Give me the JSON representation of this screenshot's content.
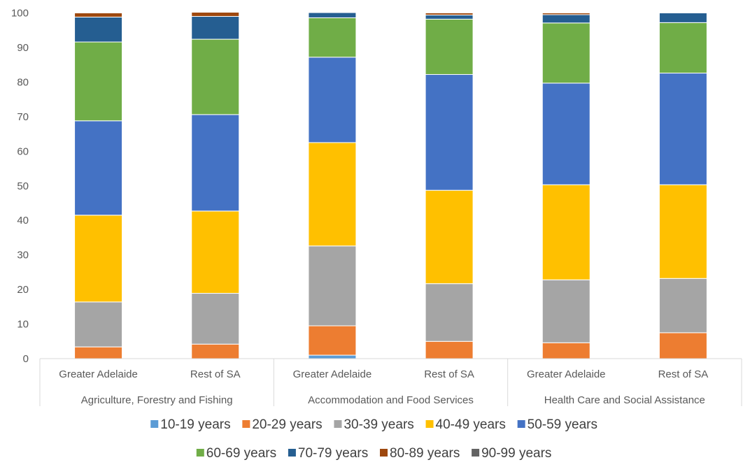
{
  "chart_data": {
    "type": "bar",
    "stacked": true,
    "title": "",
    "xlabel": "",
    "ylabel": "",
    "ylim": [
      0,
      100
    ],
    "yticks": [
      0,
      10,
      20,
      30,
      40,
      50,
      60,
      70,
      80,
      90,
      100
    ],
    "grid": false,
    "legend_position": "bottom",
    "groups": [
      {
        "label": "Agriculture, Forestry and Fishing",
        "categories": [
          "Greater Adelaide",
          "Rest of SA"
        ]
      },
      {
        "label": "Accommodation and Food Services",
        "categories": [
          "Greater Adelaide",
          "Rest of SA"
        ]
      },
      {
        "label": "Health Care and Social Assistance",
        "categories": [
          "Greater Adelaide",
          "Rest of SA"
        ]
      }
    ],
    "categories": [
      "Greater Adelaide",
      "Rest of SA",
      "Greater Adelaide",
      "Rest of SA",
      "Greater Adelaide",
      "Rest of SA"
    ],
    "series": [
      {
        "name": "10-19 years",
        "color": "#5b9bd5",
        "values": [
          0.0,
          0.0,
          1.0,
          0.0,
          0.0,
          0.0
        ]
      },
      {
        "name": "20-29 years",
        "color": "#ed7d31",
        "values": [
          3.4,
          4.2,
          8.5,
          5.0,
          4.6,
          7.5
        ]
      },
      {
        "name": "30-39 years",
        "color": "#a5a5a5",
        "values": [
          13.0,
          14.7,
          23.1,
          16.7,
          18.2,
          15.7
        ]
      },
      {
        "name": "40-49 years",
        "color": "#ffc000",
        "values": [
          25.1,
          23.8,
          29.9,
          27.0,
          27.5,
          27.1
        ]
      },
      {
        "name": "50-59 years",
        "color": "#4472c4",
        "values": [
          27.3,
          27.9,
          24.7,
          33.5,
          29.4,
          32.3
        ]
      },
      {
        "name": "60-69 years",
        "color": "#70ad47",
        "values": [
          22.8,
          21.8,
          11.4,
          16.0,
          17.4,
          14.6
        ]
      },
      {
        "name": "70-79 years",
        "color": "#255e91",
        "values": [
          7.2,
          6.6,
          1.5,
          1.2,
          2.4,
          2.8
        ]
      },
      {
        "name": "80-89 years",
        "color": "#9e480e",
        "values": [
          1.2,
          1.2,
          0.0,
          0.6,
          0.5,
          0.0
        ]
      },
      {
        "name": "90-99 years",
        "color": "#636363",
        "values": [
          0.0,
          0.0,
          0.0,
          0.0,
          0.0,
          0.0
        ]
      }
    ]
  }
}
